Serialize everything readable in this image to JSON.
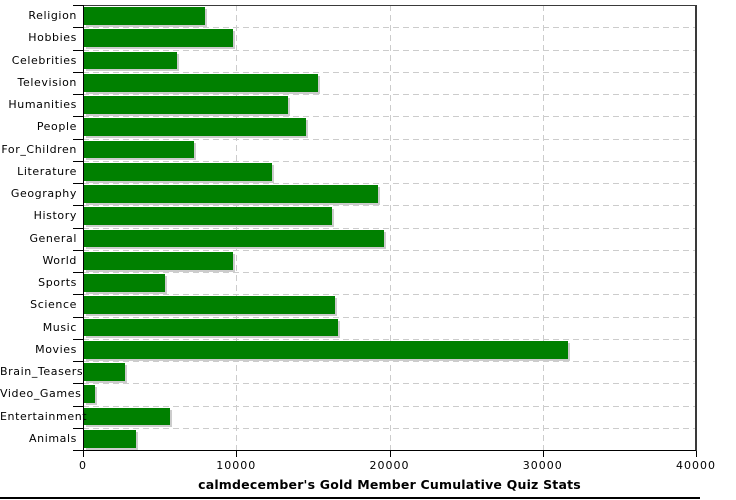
{
  "chart_data": {
    "type": "bar",
    "orientation": "horizontal",
    "title": "calmdecember's Gold Member Cumulative Quiz Stats",
    "categories": [
      "Religion",
      "Hobbies",
      "Celebrities",
      "Television",
      "Humanities",
      "People",
      "For_Children",
      "Literature",
      "Geography",
      "History",
      "General",
      "World",
      "Sports",
      "Science",
      "Music",
      "Movies",
      "Brain_Teasers",
      "Video_Games",
      "Entertainment",
      "Animals"
    ],
    "values": [
      7900,
      9700,
      6100,
      15300,
      13300,
      14500,
      7200,
      12300,
      19200,
      16200,
      19600,
      9700,
      5300,
      16400,
      16600,
      31600,
      2700,
      700,
      5600,
      3400
    ],
    "xlabel": "",
    "ylabel": "",
    "xlim": [
      0,
      40000
    ],
    "x_ticks": [
      0,
      10000,
      20000,
      30000,
      40000
    ],
    "x_tick_labels": [
      "0",
      "10000",
      "20000",
      "30000",
      "40000"
    ],
    "grid": true,
    "legend": "none",
    "colors": {
      "bar": "#008000",
      "grid": "#cccccc",
      "axis": "#000000",
      "border": "#3a3a3a",
      "shadow": "#cccccc",
      "text": "#000000"
    }
  }
}
